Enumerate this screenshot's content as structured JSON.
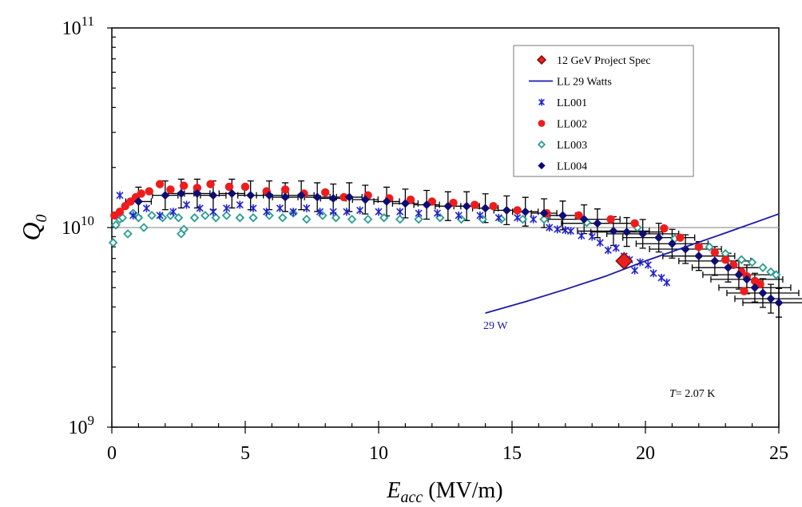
{
  "chart_data": {
    "type": "scatter",
    "title": "",
    "xlabel_main": "E",
    "xlabel_sub": "acc",
    "xlabel_unit": " (MV/m)",
    "ylabel_main": "Q",
    "ylabel_sub": "0",
    "xlim": [
      0,
      25
    ],
    "ylim": [
      1000000000.0,
      100000000000.0
    ],
    "yscale": "log",
    "x_ticks": [
      "0",
      "5",
      "10",
      "15",
      "20",
      "25"
    ],
    "y_ticks": [
      {
        "base": "10",
        "exp": "9"
      },
      {
        "base": "10",
        "exp": "10"
      },
      {
        "base": "10",
        "exp": "11"
      }
    ],
    "reference_line_y": 10000000000.0,
    "legend_position": "top-right",
    "annotations": {
      "line_label": "29 W",
      "temperature_italic": "T",
      "temperature_value": "= 2.07 K"
    },
    "colors": {
      "spec": "#e8211f",
      "spec_edge": "#7a0c0c",
      "ll29": "#1a1aa8",
      "ll001": "#2222cc",
      "ll002": "#ee1c1c",
      "ll003": "#2a9d94",
      "ll004": "#0d0d72",
      "refline": "#9a9a9a"
    },
    "series": [
      {
        "name": "12 GeV Project Spec",
        "marker": "diamond-big",
        "points": [
          [
            19.2,
            6800000000.0
          ]
        ]
      },
      {
        "name": "LL 29 Watts",
        "marker": "line",
        "points": [
          [
            14.0,
            3730000000.0
          ],
          [
            15.5,
            4250000000.0
          ],
          [
            17.0,
            4900000000.0
          ],
          [
            18.5,
            5700000000.0
          ],
          [
            20.0,
            6800000000.0
          ],
          [
            21.5,
            8000000000.0
          ],
          [
            23.0,
            9400000000.0
          ],
          [
            25.0,
            11700000000.0
          ]
        ]
      },
      {
        "name": "LL001",
        "marker": "x",
        "points": [
          [
            0.3,
            14500000000.0
          ],
          [
            0.8,
            11500000000.0
          ],
          [
            1.3,
            12500000000.0
          ],
          [
            1.8,
            11500000000.0
          ],
          [
            2.3,
            12000000000.0
          ],
          [
            2.8,
            13000000000.0
          ],
          [
            3.3,
            12500000000.0
          ],
          [
            3.8,
            12000000000.0
          ],
          [
            4.3,
            12500000000.0
          ],
          [
            4.8,
            13000000000.0
          ],
          [
            5.3,
            12500000000.0
          ],
          [
            5.8,
            12000000000.0
          ],
          [
            6.3,
            12500000000.0
          ],
          [
            6.8,
            12000000000.0
          ],
          [
            7.3,
            12500000000.0
          ],
          [
            7.8,
            12000000000.0
          ],
          [
            8.3,
            12000000000.0
          ],
          [
            8.8,
            12000000000.0
          ],
          [
            9.3,
            12200000000.0
          ],
          [
            10.0,
            12000000000.0
          ],
          [
            10.8,
            12000000000.0
          ],
          [
            11.5,
            11800000000.0
          ],
          [
            12.2,
            11800000000.0
          ],
          [
            13.0,
            11500000000.0
          ],
          [
            13.8,
            11500000000.0
          ],
          [
            14.5,
            11200000000.0
          ],
          [
            15.2,
            11200000000.0
          ],
          [
            15.8,
            11000000000.0
          ],
          [
            16.4,
            10000000000.0
          ],
          [
            16.7,
            9800000000.0
          ],
          [
            17.0,
            9700000000.0
          ],
          [
            17.2,
            9600000000.0
          ],
          [
            17.6,
            9100000000.0
          ],
          [
            18.0,
            9000000000.0
          ],
          [
            18.3,
            8400000000.0
          ],
          [
            18.6,
            7700000000.0
          ],
          [
            18.9,
            7900000000.0
          ],
          [
            19.2,
            7200000000.0
          ],
          [
            19.4,
            6900000000.0
          ],
          [
            19.6,
            6100000000.0
          ],
          [
            19.8,
            6700000000.0
          ],
          [
            20.1,
            6500000000.0
          ],
          [
            20.3,
            5900000000.0
          ],
          [
            20.6,
            5600000000.0
          ],
          [
            20.8,
            5300000000.0
          ]
        ]
      },
      {
        "name": "LL002",
        "marker": "circle",
        "points": [
          [
            0.1,
            11500000000.0
          ],
          [
            0.3,
            12000000000.0
          ],
          [
            0.5,
            12800000000.0
          ],
          [
            0.7,
            13500000000.0
          ],
          [
            0.9,
            14200000000.0
          ],
          [
            1.1,
            14800000000.0
          ],
          [
            1.4,
            15200000000.0
          ],
          [
            1.8,
            16500000000.0
          ],
          [
            2.2,
            15500000000.0
          ],
          [
            2.7,
            16200000000.0
          ],
          [
            3.2,
            15800000000.0
          ],
          [
            3.7,
            16500000000.0
          ],
          [
            4.4,
            16000000000.0
          ],
          [
            5.0,
            16000000000.0
          ],
          [
            5.8,
            15200000000.0
          ],
          [
            6.5,
            15500000000.0
          ],
          [
            7.2,
            14800000000.0
          ],
          [
            8.0,
            15000000000.0
          ],
          [
            8.7,
            14200000000.0
          ],
          [
            9.6,
            14500000000.0
          ],
          [
            10.4,
            14000000000.0
          ],
          [
            11.2,
            13800000000.0
          ],
          [
            12.0,
            13500000000.0
          ],
          [
            12.8,
            13300000000.0
          ],
          [
            13.6,
            13000000000.0
          ],
          [
            14.3,
            12800000000.0
          ],
          [
            15.2,
            12200000000.0
          ],
          [
            16.3,
            11800000000.0
          ],
          [
            17.5,
            11500000000.0
          ],
          [
            18.7,
            11000000000.0
          ],
          [
            19.6,
            10500000000.0
          ],
          [
            20.7,
            9900000000.0
          ],
          [
            21.3,
            8900000000.0
          ],
          [
            22.0,
            8000000000.0
          ],
          [
            22.6,
            7500000000.0
          ],
          [
            23.0,
            6900000000.0
          ],
          [
            23.3,
            6500000000.0
          ],
          [
            23.6,
            6000000000.0
          ],
          [
            23.8,
            5700000000.0
          ],
          [
            24.1,
            5400000000.0
          ],
          [
            24.3,
            5200000000.0
          ],
          [
            23.7,
            4800000000.0
          ]
        ]
      },
      {
        "name": "LL003",
        "marker": "diamond-open",
        "points": [
          [
            0.05,
            8400000000.0
          ],
          [
            0.15,
            10300000000.0
          ],
          [
            0.3,
            11000000000.0
          ],
          [
            0.4,
            11200000000.0
          ],
          [
            0.6,
            9300000000.0
          ],
          [
            0.8,
            11800000000.0
          ],
          [
            1.0,
            11200000000.0
          ],
          [
            1.2,
            10000000000.0
          ],
          [
            1.5,
            11500000000.0
          ],
          [
            1.9,
            11200000000.0
          ],
          [
            2.2,
            11500000000.0
          ],
          [
            2.5,
            11200000000.0
          ],
          [
            2.6,
            9300000000.0
          ],
          [
            2.7,
            9800000000.0
          ],
          [
            3.1,
            11200000000.0
          ],
          [
            3.5,
            11500000000.0
          ],
          [
            3.9,
            11200000000.0
          ],
          [
            4.3,
            11500000000.0
          ],
          [
            4.8,
            11200000000.0
          ],
          [
            5.3,
            11200000000.0
          ],
          [
            5.9,
            11500000000.0
          ],
          [
            6.4,
            11200000000.0
          ],
          [
            6.8,
            11800000000.0
          ],
          [
            7.3,
            11000000000.0
          ],
          [
            7.9,
            11500000000.0
          ],
          [
            8.4,
            11200000000.0
          ],
          [
            9.0,
            11000000000.0
          ],
          [
            9.6,
            11000000000.0
          ],
          [
            10.2,
            11200000000.0
          ],
          [
            10.8,
            11000000000.0
          ],
          [
            11.5,
            11000000000.0
          ],
          [
            12.3,
            11200000000.0
          ],
          [
            13.1,
            11000000000.0
          ],
          [
            13.9,
            11000000000.0
          ],
          [
            14.6,
            11000000000.0
          ],
          [
            15.4,
            11000000000.0
          ],
          [
            16.2,
            11000000000.0
          ],
          [
            17.8,
            10600000000.0
          ],
          [
            19.7,
            10000000000.0
          ],
          [
            21.1,
            8800000000.0
          ],
          [
            22.4,
            8000000000.0
          ],
          [
            23.0,
            7400000000.0
          ],
          [
            23.6,
            6900000000.0
          ],
          [
            24.0,
            6700000000.0
          ],
          [
            24.4,
            6300000000.0
          ],
          [
            24.7,
            6000000000.0
          ],
          [
            24.9,
            5800000000.0
          ]
        ]
      },
      {
        "name": "LL004",
        "marker": "diamond",
        "points": [
          [
            1.0,
            13500000000.0
          ],
          [
            2.0,
            14500000000.0
          ],
          [
            2.6,
            14800000000.0
          ],
          [
            3.2,
            14800000000.0
          ],
          [
            3.8,
            14500000000.0
          ],
          [
            4.5,
            14800000000.0
          ],
          [
            5.2,
            14500000000.0
          ],
          [
            5.9,
            14500000000.0
          ],
          [
            6.5,
            14200000000.0
          ],
          [
            7.1,
            14500000000.0
          ],
          [
            7.7,
            14200000000.0
          ],
          [
            8.3,
            14000000000.0
          ],
          [
            8.9,
            14200000000.0
          ],
          [
            9.5,
            13800000000.0
          ],
          [
            10.3,
            13500000000.0
          ],
          [
            11.0,
            13200000000.0
          ],
          [
            11.8,
            13000000000.0
          ],
          [
            12.6,
            12800000000.0
          ],
          [
            13.3,
            12800000000.0
          ],
          [
            14.0,
            12500000000.0
          ],
          [
            14.8,
            12200000000.0
          ],
          [
            15.5,
            12000000000.0
          ],
          [
            16.2,
            11800000000.0
          ],
          [
            16.9,
            11500000000.0
          ],
          [
            17.7,
            11000000000.0
          ],
          [
            18.2,
            10500000000.0
          ],
          [
            18.8,
            9600000000.0
          ],
          [
            19.3,
            9500000000.0
          ],
          [
            19.9,
            9300000000.0
          ],
          [
            20.5,
            8900000000.0
          ],
          [
            21.0,
            8300000000.0
          ],
          [
            21.5,
            7800000000.0
          ],
          [
            22.0,
            7200000000.0
          ],
          [
            22.6,
            6800000000.0
          ],
          [
            23.1,
            6300000000.0
          ],
          [
            23.5,
            5800000000.0
          ],
          [
            23.8,
            5500000000.0
          ],
          [
            24.1,
            5000000000.0
          ],
          [
            24.4,
            4700000000.0
          ],
          [
            24.7,
            4400000000.0
          ],
          [
            25.0,
            4200000000.0
          ]
        ]
      }
    ]
  }
}
